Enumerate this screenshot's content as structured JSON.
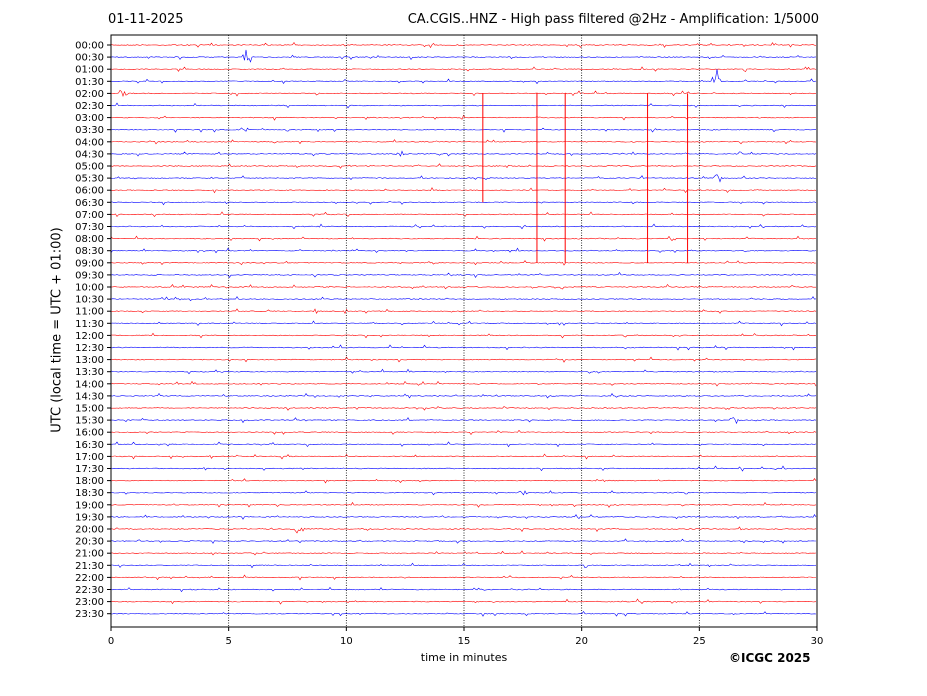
{
  "header": {
    "date": "01-11-2025",
    "title": "CA.CGIS..HNZ - High pass filtered @2Hz - Amplification: 1/5000"
  },
  "copyright": "©ICGC 2025",
  "chart_data": {
    "type": "line",
    "title": "CA.CGIS..HNZ - High pass filtered @2Hz - Amplification: 1/5000",
    "xlabel": "time in minutes",
    "ylabel": "UTC (local time = UTC + 01:00)",
    "xlim": [
      0,
      30
    ],
    "x_ticks": [
      0,
      5,
      10,
      15,
      20,
      25,
      30
    ],
    "grid": "vertical dotted lines at every 5 minutes",
    "trace_colors": [
      "#ff0000",
      "#0000ff"
    ],
    "rows": [
      "00:00",
      "00:30",
      "01:00",
      "01:30",
      "02:00",
      "02:30",
      "03:00",
      "03:30",
      "04:00",
      "04:30",
      "05:00",
      "05:30",
      "06:00",
      "06:30",
      "07:00",
      "07:30",
      "08:00",
      "08:30",
      "09:00",
      "09:30",
      "10:00",
      "10:30",
      "11:00",
      "11:30",
      "12:00",
      "12:30",
      "13:00",
      "13:30",
      "14:00",
      "14:30",
      "15:00",
      "15:30",
      "16:00",
      "16:30",
      "17:00",
      "17:30",
      "18:00",
      "18:30",
      "19:00",
      "19:30",
      "20:00",
      "20:30",
      "21:00",
      "21:30",
      "22:00",
      "22:30",
      "23:00",
      "23:30"
    ],
    "events": [
      {
        "row": "00:30",
        "minute": 5.8,
        "amplitude": 1.0
      },
      {
        "row": "01:30",
        "minute": 25.7,
        "amplitude": 1.2
      },
      {
        "row": "02:00",
        "minute": 0.5,
        "amplitude": 0.5
      },
      {
        "row": "04:30",
        "minute": 12.3,
        "amplitude": 0.3
      },
      {
        "row": "05:30",
        "minute": 25.8,
        "amplitude": 0.4
      },
      {
        "row": "15:30",
        "minute": 26.5,
        "amplitude": 0.5
      },
      {
        "row": "18:30",
        "minute": 17.5,
        "amplitude": 0.35
      },
      {
        "row": "20:00",
        "minute": 8.0,
        "amplitude": 0.55
      }
    ],
    "spikes": [
      {
        "minute": 15.8,
        "from_row": "02:00",
        "to_row": "06:30"
      },
      {
        "minute": 18.1,
        "from_row": "02:00",
        "to_row": "09:00"
      },
      {
        "minute": 19.3,
        "from_row": "02:00",
        "to_row": "09:00"
      },
      {
        "minute": 22.8,
        "from_row": "02:00",
        "to_row": "09:00"
      },
      {
        "minute": 24.5,
        "from_row": "02:00",
        "to_row": "09:00"
      }
    ]
  }
}
